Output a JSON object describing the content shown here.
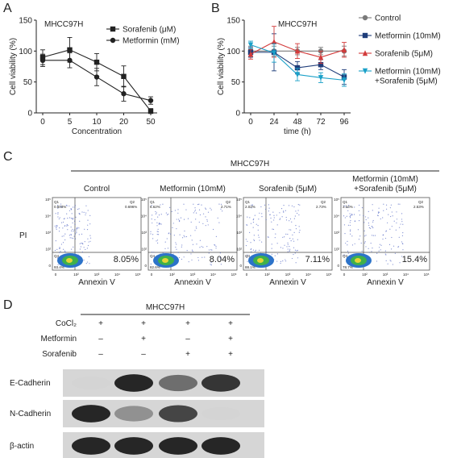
{
  "panels": {
    "a": {
      "label": "A"
    },
    "b": {
      "label": "B"
    },
    "c": {
      "label": "C"
    },
    "d": {
      "label": "D"
    }
  },
  "chart_data": [
    {
      "panel": "A",
      "type": "line",
      "title": "MHCC97H",
      "xlabel": "Concentration",
      "ylabel": "Cell viability (%)",
      "categories": [
        "0",
        "5",
        "10",
        "20",
        "50"
      ],
      "ylim": [
        0,
        150
      ],
      "yticks": [
        0,
        50,
        100,
        150
      ],
      "legend_position": "top-right",
      "series": [
        {
          "name": "Sorafenib (μM)",
          "marker": "square",
          "values": [
            90,
            102,
            82,
            59,
            3
          ],
          "errors": [
            12,
            20,
            14,
            17,
            4
          ]
        },
        {
          "name": "Metformin (mM)",
          "marker": "circle",
          "values": [
            85,
            85,
            58,
            31,
            20
          ],
          "errors": [
            10,
            12,
            14,
            12,
            6
          ]
        }
      ]
    },
    {
      "panel": "B",
      "type": "line",
      "title": "MHCC97H",
      "xlabel": "time (h)",
      "ylabel": "Cell viability (%)",
      "categories": [
        "0",
        "24",
        "48",
        "72",
        "96"
      ],
      "ylim": [
        0,
        150
      ],
      "yticks": [
        0,
        50,
        100,
        150
      ],
      "legend_position": "right",
      "series": [
        {
          "name": "Control",
          "marker": "circle",
          "color": "#7a7a7a",
          "values": [
            100,
            100,
            100,
            100,
            100
          ],
          "errors": [
            8,
            8,
            6,
            6,
            8
          ]
        },
        {
          "name": "Metformin (10mM)",
          "marker": "square",
          "color": "#1f3d7a",
          "values": [
            98,
            98,
            73,
            78,
            58
          ],
          "errors": [
            8,
            30,
            10,
            8,
            12
          ]
        },
        {
          "name": "Sorafenib (5μM)",
          "marker": "triangle-up",
          "color": "#d33b3b",
          "values": [
            95,
            115,
            100,
            90,
            102
          ],
          "errors": [
            8,
            25,
            12,
            10,
            12
          ]
        },
        {
          "name": "Metformin (10mM)\n+Sorafenib (5μM)",
          "marker": "triangle-down",
          "color": "#1aa0c8",
          "values": [
            110,
            97,
            62,
            57,
            53
          ],
          "errors": [
            6,
            15,
            10,
            8,
            10
          ]
        }
      ]
    }
  ],
  "flow": {
    "cell_line": "MHCC97H",
    "y_label": "PI",
    "x_label": "Annexin V",
    "plots": [
      {
        "title": "Control",
        "q1": "0.603%",
        "q2": "0.696%",
        "q3": "93.4%",
        "q4": "8.05%"
      },
      {
        "title": "Metformin (10mM)",
        "q1": "6.62%",
        "q2": "2.71%",
        "q3": "82.6%",
        "q4": "8.04%"
      },
      {
        "title": "Sorafenib (5μM)",
        "q1": "2.02%",
        "q2": "2.73%",
        "q3": "88.1%",
        "q4": "7.11%"
      },
      {
        "title": "Metformin (10mM)\n+Sorafenib (5μM)",
        "q1": "3.34%",
        "q2": "2.53%",
        "q3": "78.7%",
        "q4": "15.4%"
      }
    ],
    "axis_ticks": [
      "0",
      "10²",
      "10³",
      "10⁴",
      "10⁵"
    ]
  },
  "western": {
    "cell_line": "MHCC97H",
    "conditions": [
      {
        "name": "CoCl₂",
        "signs": [
          "+",
          "+",
          "+",
          "+"
        ]
      },
      {
        "name": "Metformin",
        "signs": [
          "–",
          "+",
          "–",
          "+"
        ]
      },
      {
        "name": "Sorafenib",
        "signs": [
          "–",
          "–",
          "+",
          "+"
        ]
      }
    ],
    "bands": [
      {
        "name": "E-Cadherin",
        "intensity": [
          0.05,
          0.95,
          0.7,
          0.9
        ]
      },
      {
        "name": "N-Cadherin",
        "intensity": [
          0.95,
          0.55,
          0.85,
          0.05
        ]
      },
      {
        "name": "β-actin",
        "intensity": [
          0.95,
          0.95,
          0.95,
          0.95
        ]
      }
    ]
  }
}
